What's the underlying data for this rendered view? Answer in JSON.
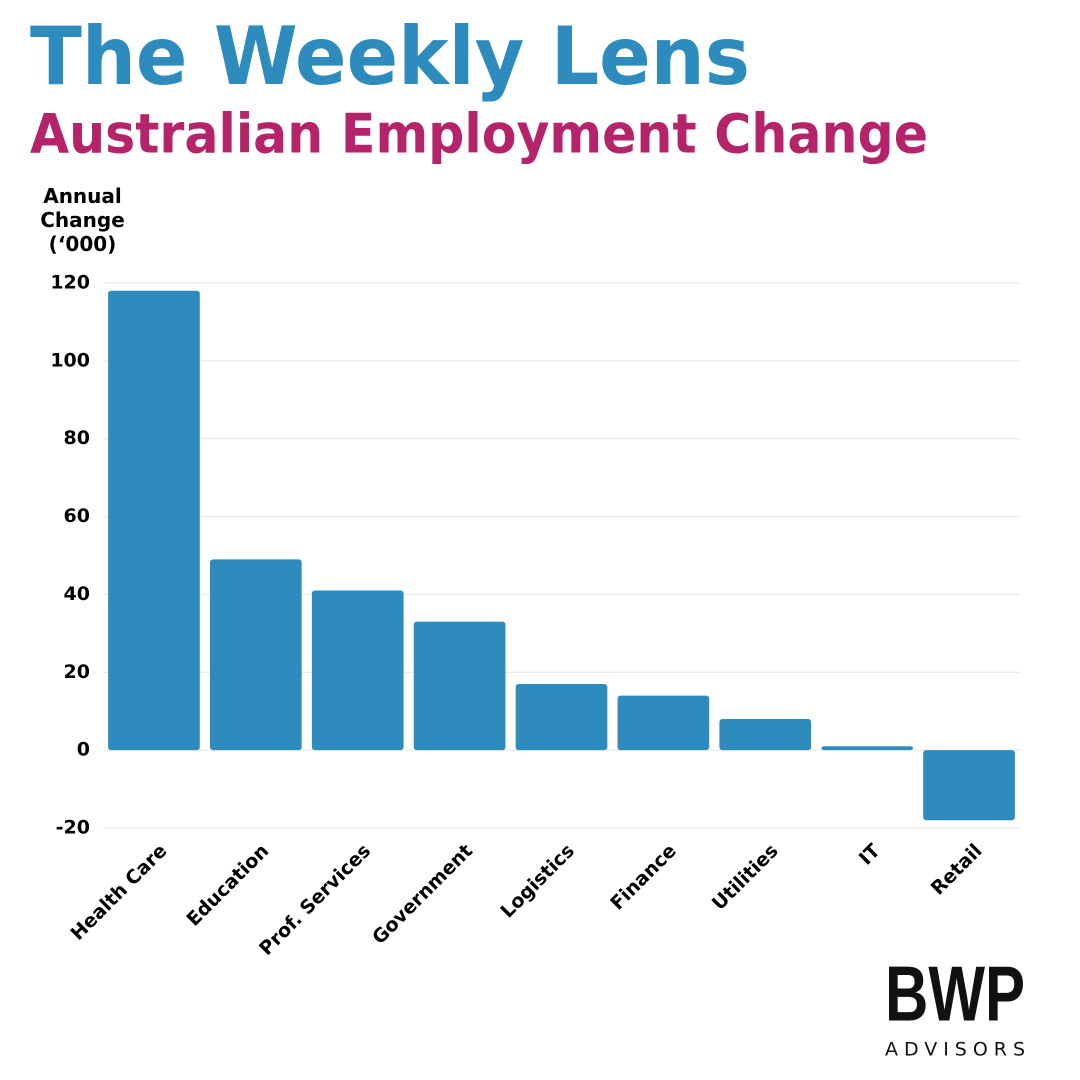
{
  "chart_data": {
    "type": "bar",
    "title": "The Weekly Lens",
    "subtitle": "Australian Employment Change",
    "y_label": "Annual Change (‘000)",
    "categories": [
      "Health Care",
      "Education",
      "Prof. Services",
      "Government",
      "Logistics",
      "Finance",
      "Utilities",
      "IT",
      "Retail"
    ],
    "values": [
      118,
      49,
      41,
      33,
      17,
      14,
      8,
      1,
      -18
    ],
    "color": "#2e8bbd",
    "ylim": [
      -20,
      120
    ],
    "yticks": [
      -20,
      0,
      20,
      40,
      60,
      80,
      100,
      120
    ],
    "grid": true
  },
  "logo": {
    "name": "BWP",
    "tagline": "ADVISORS"
  }
}
